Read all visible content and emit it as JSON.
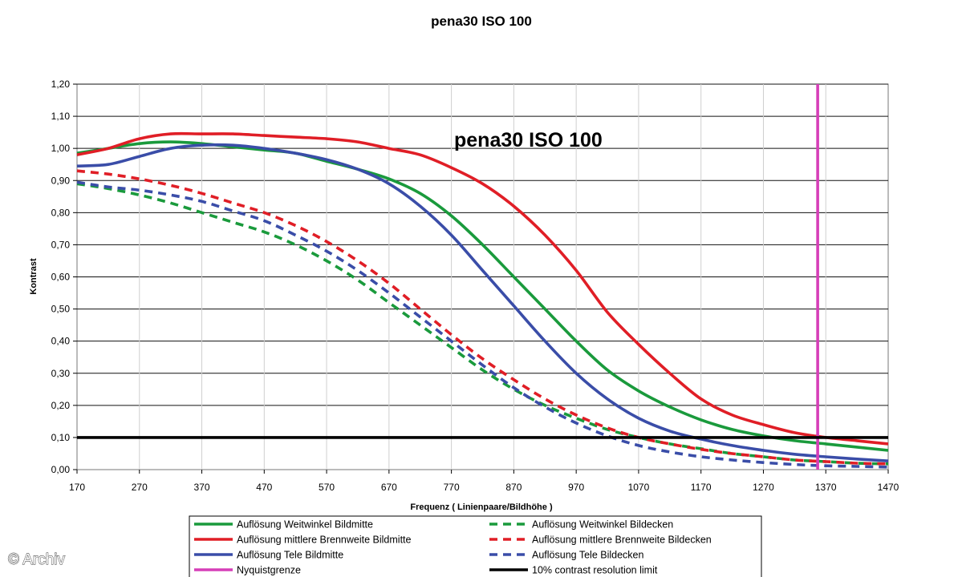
{
  "watermark": "© Archiv",
  "chart_data": {
    "type": "line",
    "title": "pena30 ISO 100",
    "inner_title": "pena30 ISO 100",
    "xlabel": "Frequenz ( Linienpaare/Bildhöhe )",
    "ylabel": "Kontrast",
    "xlim": [
      170,
      1470
    ],
    "ylim": [
      0,
      1.2
    ],
    "x_ticks": [
      "170",
      "270",
      "370",
      "470",
      "570",
      "670",
      "770",
      "870",
      "970",
      "1070",
      "1170",
      "1270",
      "1370",
      "1470"
    ],
    "y_ticks": [
      "0,00",
      "0,10",
      "0,20",
      "0,30",
      "0,40",
      "0,50",
      "0,60",
      "0,70",
      "0,80",
      "0,90",
      "1,00",
      "1,10",
      "1,20"
    ],
    "grid": "horizontal",
    "legend_position": "bottom",
    "series": [
      {
        "name": "Auflösung Weitwinkel Bildmitte",
        "color": "#1a9a3c",
        "style": "solid",
        "points": [
          [
            170,
            0.985
          ],
          [
            220,
            1.0
          ],
          [
            270,
            1.015
          ],
          [
            320,
            1.02
          ],
          [
            370,
            1.015
          ],
          [
            420,
            1.005
          ],
          [
            470,
            0.995
          ],
          [
            520,
            0.985
          ],
          [
            570,
            0.96
          ],
          [
            620,
            0.935
          ],
          [
            670,
            0.905
          ],
          [
            720,
            0.86
          ],
          [
            770,
            0.79
          ],
          [
            820,
            0.7
          ],
          [
            870,
            0.6
          ],
          [
            920,
            0.5
          ],
          [
            970,
            0.4
          ],
          [
            1020,
            0.31
          ],
          [
            1070,
            0.245
          ],
          [
            1120,
            0.195
          ],
          [
            1170,
            0.155
          ],
          [
            1220,
            0.125
          ],
          [
            1270,
            0.105
          ],
          [
            1320,
            0.09
          ],
          [
            1370,
            0.08
          ],
          [
            1420,
            0.07
          ],
          [
            1470,
            0.06
          ]
        ]
      },
      {
        "name": "Auflösung mittlere Brennweite Bildmitte",
        "color": "#e01e26",
        "style": "solid",
        "points": [
          [
            170,
            0.98
          ],
          [
            220,
            1.0
          ],
          [
            270,
            1.03
          ],
          [
            320,
            1.045
          ],
          [
            370,
            1.045
          ],
          [
            420,
            1.045
          ],
          [
            470,
            1.04
          ],
          [
            520,
            1.035
          ],
          [
            570,
            1.03
          ],
          [
            620,
            1.02
          ],
          [
            670,
            1.0
          ],
          [
            720,
            0.98
          ],
          [
            770,
            0.94
          ],
          [
            820,
            0.89
          ],
          [
            870,
            0.82
          ],
          [
            920,
            0.73
          ],
          [
            970,
            0.62
          ],
          [
            1020,
            0.49
          ],
          [
            1070,
            0.39
          ],
          [
            1120,
            0.3
          ],
          [
            1170,
            0.22
          ],
          [
            1220,
            0.17
          ],
          [
            1270,
            0.14
          ],
          [
            1320,
            0.115
          ],
          [
            1370,
            0.1
          ],
          [
            1420,
            0.09
          ],
          [
            1470,
            0.08
          ]
        ]
      },
      {
        "name": "Auflösung Tele Bildmitte",
        "color": "#3a4da8",
        "style": "solid",
        "points": [
          [
            170,
            0.945
          ],
          [
            220,
            0.95
          ],
          [
            270,
            0.975
          ],
          [
            320,
            1.0
          ],
          [
            370,
            1.01
          ],
          [
            420,
            1.01
          ],
          [
            470,
            1.0
          ],
          [
            520,
            0.985
          ],
          [
            570,
            0.965
          ],
          [
            620,
            0.935
          ],
          [
            670,
            0.89
          ],
          [
            720,
            0.82
          ],
          [
            770,
            0.73
          ],
          [
            820,
            0.62
          ],
          [
            870,
            0.51
          ],
          [
            920,
            0.4
          ],
          [
            970,
            0.3
          ],
          [
            1020,
            0.22
          ],
          [
            1070,
            0.16
          ],
          [
            1120,
            0.12
          ],
          [
            1170,
            0.095
          ],
          [
            1220,
            0.075
          ],
          [
            1270,
            0.06
          ],
          [
            1320,
            0.048
          ],
          [
            1370,
            0.04
          ],
          [
            1420,
            0.033
          ],
          [
            1470,
            0.027
          ]
        ]
      },
      {
        "name": "Auflösung Weitwinkel Bildecken",
        "color": "#1a9a3c",
        "style": "dashed",
        "points": [
          [
            170,
            0.89
          ],
          [
            220,
            0.875
          ],
          [
            270,
            0.855
          ],
          [
            320,
            0.83
          ],
          [
            370,
            0.8
          ],
          [
            420,
            0.77
          ],
          [
            470,
            0.74
          ],
          [
            520,
            0.7
          ],
          [
            570,
            0.65
          ],
          [
            620,
            0.59
          ],
          [
            670,
            0.52
          ],
          [
            720,
            0.45
          ],
          [
            770,
            0.38
          ],
          [
            820,
            0.31
          ],
          [
            870,
            0.25
          ],
          [
            920,
            0.2
          ],
          [
            970,
            0.16
          ],
          [
            1020,
            0.125
          ],
          [
            1070,
            0.1
          ],
          [
            1120,
            0.08
          ],
          [
            1170,
            0.065
          ],
          [
            1220,
            0.05
          ],
          [
            1270,
            0.04
          ],
          [
            1320,
            0.03
          ],
          [
            1370,
            0.025
          ],
          [
            1420,
            0.02
          ],
          [
            1470,
            0.018
          ]
        ]
      },
      {
        "name": "Auflösung mittlere Brennweite Bildecken",
        "color": "#e01e26",
        "style": "dashed",
        "points": [
          [
            170,
            0.93
          ],
          [
            220,
            0.92
          ],
          [
            270,
            0.905
          ],
          [
            320,
            0.885
          ],
          [
            370,
            0.86
          ],
          [
            420,
            0.83
          ],
          [
            470,
            0.8
          ],
          [
            520,
            0.76
          ],
          [
            570,
            0.71
          ],
          [
            620,
            0.65
          ],
          [
            670,
            0.58
          ],
          [
            720,
            0.5
          ],
          [
            770,
            0.42
          ],
          [
            820,
            0.345
          ],
          [
            870,
            0.28
          ],
          [
            920,
            0.22
          ],
          [
            970,
            0.17
          ],
          [
            1020,
            0.13
          ],
          [
            1070,
            0.1
          ],
          [
            1120,
            0.08
          ],
          [
            1170,
            0.063
          ],
          [
            1220,
            0.05
          ],
          [
            1270,
            0.04
          ],
          [
            1320,
            0.03
          ],
          [
            1370,
            0.025
          ],
          [
            1420,
            0.02
          ],
          [
            1470,
            0.018
          ]
        ]
      },
      {
        "name": "Auflösung Tele Bildecken",
        "color": "#3a4da8",
        "style": "dashed",
        "points": [
          [
            170,
            0.895
          ],
          [
            220,
            0.88
          ],
          [
            270,
            0.87
          ],
          [
            320,
            0.855
          ],
          [
            370,
            0.835
          ],
          [
            420,
            0.805
          ],
          [
            470,
            0.775
          ],
          [
            520,
            0.73
          ],
          [
            570,
            0.68
          ],
          [
            620,
            0.62
          ],
          [
            670,
            0.55
          ],
          [
            720,
            0.475
          ],
          [
            770,
            0.4
          ],
          [
            820,
            0.325
          ],
          [
            870,
            0.255
          ],
          [
            920,
            0.195
          ],
          [
            970,
            0.145
          ],
          [
            1020,
            0.105
          ],
          [
            1070,
            0.075
          ],
          [
            1120,
            0.055
          ],
          [
            1170,
            0.04
          ],
          [
            1220,
            0.03
          ],
          [
            1270,
            0.022
          ],
          [
            1320,
            0.016
          ],
          [
            1370,
            0.012
          ],
          [
            1420,
            0.01
          ],
          [
            1470,
            0.008
          ]
        ]
      },
      {
        "name": "Nyquistgrenze",
        "color": "#d63fb8",
        "style": "vertical",
        "x": 1357
      },
      {
        "name": "10% contrast resolution limit",
        "color": "#000000",
        "style": "horizontal",
        "y": 0.1
      }
    ]
  }
}
